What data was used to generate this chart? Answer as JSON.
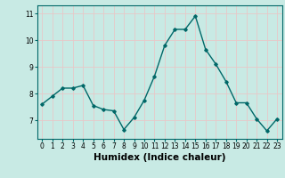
{
  "x": [
    0,
    1,
    2,
    3,
    4,
    5,
    6,
    7,
    8,
    9,
    10,
    11,
    12,
    13,
    14,
    15,
    16,
    17,
    18,
    19,
    20,
    21,
    22,
    23
  ],
  "y": [
    7.6,
    7.9,
    8.2,
    8.2,
    8.3,
    7.55,
    7.4,
    7.35,
    6.65,
    7.1,
    7.75,
    8.65,
    9.8,
    10.4,
    10.4,
    10.9,
    9.65,
    9.1,
    8.45,
    7.65,
    7.65,
    7.05,
    6.6,
    7.05
  ],
  "line_color": "#006868",
  "marker": "D",
  "marker_size": 1.8,
  "bg_color": "#c8eae4",
  "grid_color": "#e8c8c8",
  "xlabel": "Humidex (Indice chaleur)",
  "ylim": [
    6.3,
    11.3
  ],
  "xlim": [
    -0.5,
    23.5
  ],
  "yticks": [
    7,
    8,
    9,
    10,
    11
  ],
  "xtick_labels": [
    "0",
    "1",
    "2",
    "3",
    "4",
    "5",
    "6",
    "7",
    "8",
    "9",
    "10",
    "11",
    "12",
    "13",
    "14",
    "15",
    "16",
    "17",
    "18",
    "19",
    "20",
    "21",
    "22",
    "23"
  ],
  "tick_fontsize": 5.5,
  "xlabel_fontsize": 7.5,
  "linewidth": 1.0
}
